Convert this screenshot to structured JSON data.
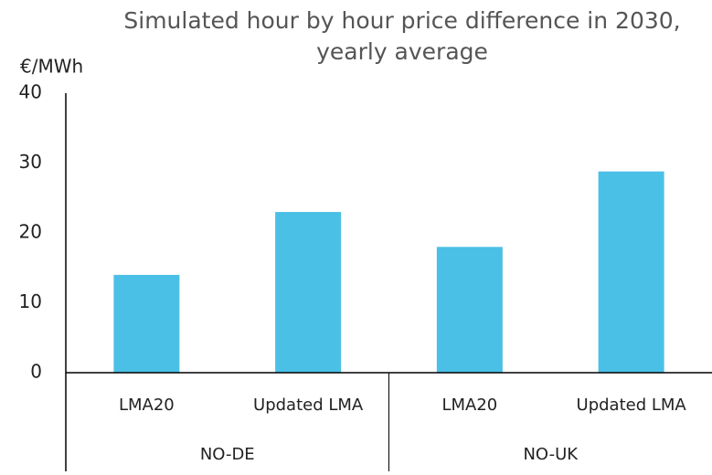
{
  "chart_data": {
    "type": "bar",
    "title": "Simulated hour by hour price difference in 2030, yearly average",
    "y_label": "€/MWh",
    "categories": [
      "LMA20",
      "Updated LMA",
      "LMA20",
      "Updated LMA"
    ],
    "groups": [
      "NO-DE",
      "NO-UK"
    ],
    "values": [
      14,
      23,
      18,
      28.8
    ],
    "color": "#4bc0e6",
    "ylim": [
      0,
      40
    ],
    "yticks": [
      0,
      10,
      20,
      30,
      40
    ],
    "grid": false
  }
}
